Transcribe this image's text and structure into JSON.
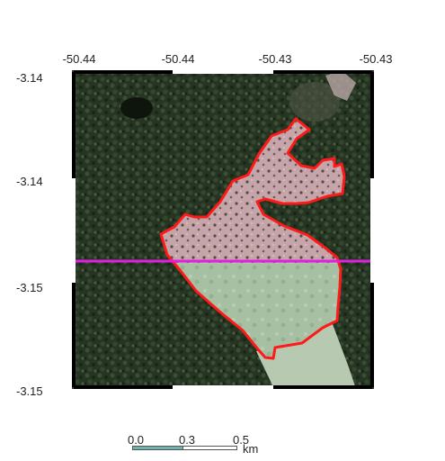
{
  "map": {
    "x_ticks": [
      "-50.44",
      "-50.44",
      "-50.43",
      "-50.43"
    ],
    "y_ticks": [
      "-3.14",
      "-3.14",
      "-3.15",
      "-3.15"
    ],
    "boundary_color": "#ff1a1a",
    "transect_color": "#e020e0",
    "forest_color": "#243422",
    "cleared_color": "#c9a8ad"
  },
  "scale_bar": {
    "labels": [
      "0.0",
      "0.3",
      "0.5"
    ],
    "unit": "km",
    "fill_color": "#6fb3ae"
  }
}
